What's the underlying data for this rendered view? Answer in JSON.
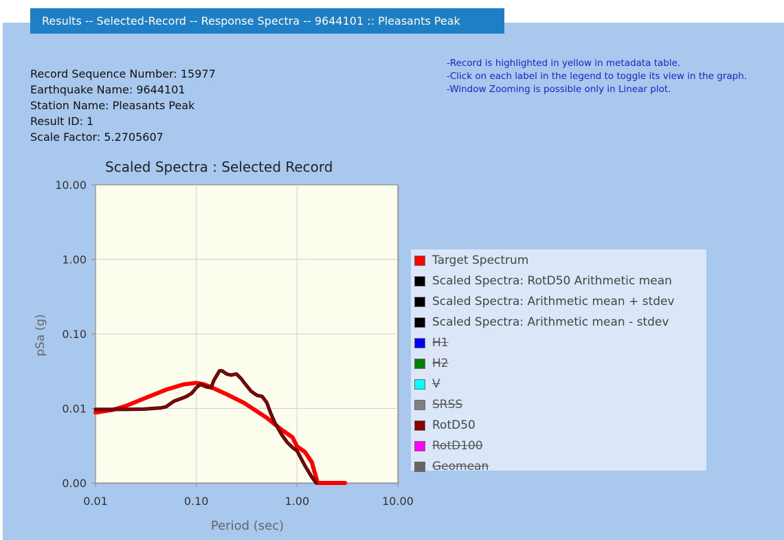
{
  "header": {
    "title": "Results -- Selected-Record -- Response Spectra -- 9644101 :: Pleasants Peak"
  },
  "record": {
    "sequence_number": "Record Sequence Number: 15977",
    "earthquake_name": "Earthquake Name: 9644101",
    "station_name": "Station Name: Pleasants Peak",
    "result_id": "Result ID: 1",
    "scale_factor": "Scale Factor: 5.2705607"
  },
  "notes": [
    "-Record is highlighted in yellow in metadata table.",
    "-Click on each label in the legend to toggle its view in the graph.",
    "-Window Zooming is possible only in Linear plot."
  ],
  "colors": {
    "page_bg": "#a8c8ee",
    "tab_bg": "#1f7fc4",
    "plot_bg": "#fdfdee",
    "notes_text": "#1a24c8"
  },
  "chart_data": {
    "type": "line",
    "title": "Scaled Spectra : Selected Record",
    "xlabel": "Period (sec)",
    "ylabel": "pSa (g)",
    "x_scale": "log",
    "y_scale": "log",
    "xlim": [
      0.01,
      10
    ],
    "ylim": [
      0.001,
      10
    ],
    "x_ticks": [
      0.01,
      0.1,
      1,
      10
    ],
    "x_tick_labels": [
      "0.01",
      "0.10",
      "1.00",
      "10.00"
    ],
    "y_ticks": [
      0.001,
      0.01,
      0.1,
      1,
      10
    ],
    "y_tick_labels": [
      "0.00",
      "0.01",
      "0.10",
      "1.00",
      "10.00"
    ],
    "grid": true,
    "legend_position": "right",
    "series": [
      {
        "name": "Target Spectrum",
        "color": "#ff0000",
        "visible": true,
        "x": [
          0.01,
          0.015,
          0.02,
          0.03,
          0.05,
          0.075,
          0.1,
          0.12,
          0.15,
          0.2,
          0.3,
          0.5,
          0.7,
          0.9,
          1.0,
          1.2,
          1.4,
          1.6,
          2.0,
          3.0
        ],
        "y": [
          0.0088,
          0.0096,
          0.0108,
          0.0135,
          0.0178,
          0.021,
          0.022,
          0.021,
          0.0185,
          0.0155,
          0.0118,
          0.0075,
          0.0052,
          0.0041,
          0.0031,
          0.0026,
          0.0019,
          0.001,
          0.001,
          0.001
        ]
      },
      {
        "name": "Scaled Spectra: RotD50 Arithmetic mean",
        "color": "#000000",
        "visible": true,
        "x": [],
        "y": []
      },
      {
        "name": "Scaled Spectra: Arithmetic mean + stdev",
        "color": "#000000",
        "visible": true,
        "x": [],
        "y": []
      },
      {
        "name": "Scaled Spectra: Arithmetic mean - stdev",
        "color": "#000000",
        "visible": true,
        "x": [],
        "y": []
      },
      {
        "name": "H1",
        "color": "#0000ff",
        "visible": false,
        "x": [],
        "y": []
      },
      {
        "name": "H2",
        "color": "#008000",
        "visible": false,
        "x": [],
        "y": []
      },
      {
        "name": "V",
        "color": "#00ffff",
        "visible": false,
        "x": [],
        "y": []
      },
      {
        "name": "SRSS",
        "color": "#808080",
        "visible": false,
        "x": [],
        "y": []
      },
      {
        "name": "RotD50",
        "color": "#8b0000",
        "visible": true,
        "x": [
          0.01,
          0.02,
          0.03,
          0.045,
          0.05,
          0.06,
          0.07,
          0.08,
          0.09,
          0.1,
          0.11,
          0.125,
          0.14,
          0.15,
          0.17,
          0.18,
          0.2,
          0.22,
          0.25,
          0.28,
          0.3,
          0.35,
          0.4,
          0.45,
          0.5,
          0.55,
          0.6,
          0.7,
          0.8,
          0.9,
          1.0,
          1.2,
          1.4,
          1.55
        ],
        "y": [
          0.0097,
          0.0097,
          0.0098,
          0.0102,
          0.0105,
          0.0125,
          0.0135,
          0.0145,
          0.016,
          0.019,
          0.021,
          0.0195,
          0.019,
          0.024,
          0.032,
          0.032,
          0.029,
          0.028,
          0.029,
          0.025,
          0.022,
          0.017,
          0.015,
          0.0145,
          0.012,
          0.0085,
          0.0065,
          0.0045,
          0.0035,
          0.003,
          0.0027,
          0.0017,
          0.0012,
          0.001
        ]
      },
      {
        "name": "RotD100",
        "color": "#ff00ff",
        "visible": false,
        "x": [],
        "y": []
      },
      {
        "name": "Geomean",
        "color": "#666666",
        "visible": false,
        "x": [],
        "y": []
      }
    ]
  }
}
